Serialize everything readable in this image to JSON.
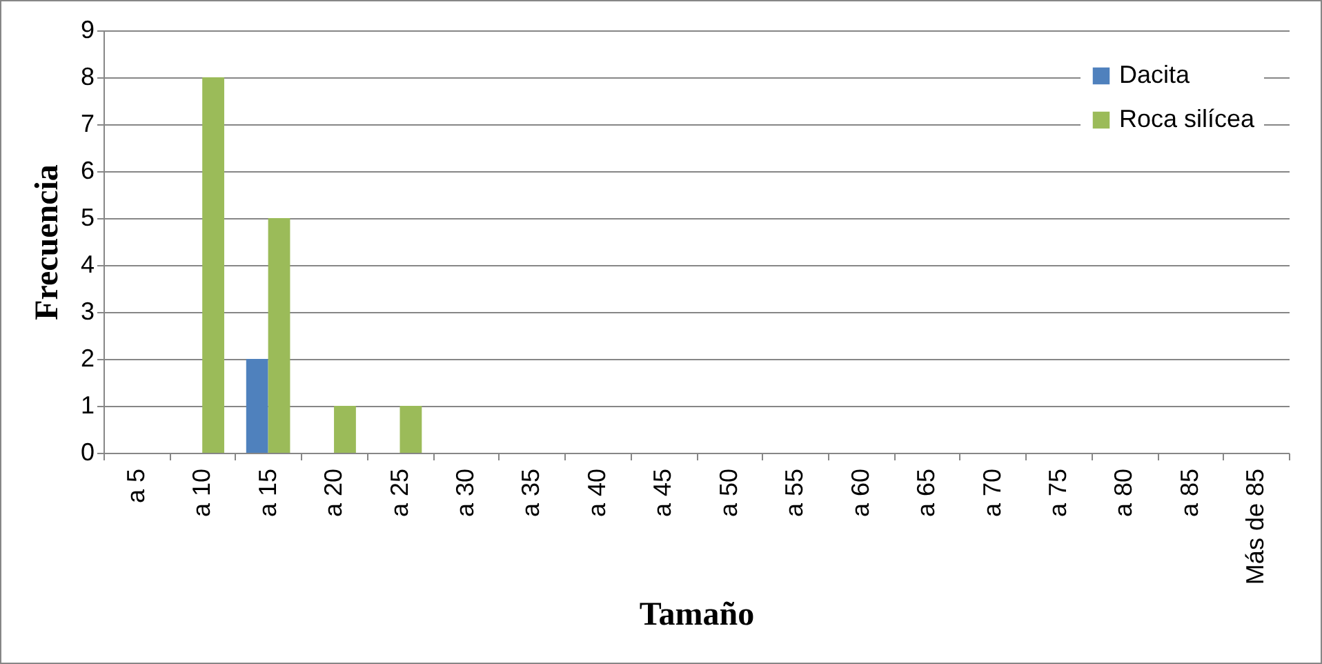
{
  "chart_data": {
    "type": "bar",
    "xlabel": "Tamaño",
    "ylabel": "Frecuencia",
    "categories": [
      "a 5",
      "a 10",
      "a 15",
      "a 20",
      "a 25",
      "a 30",
      "a 35",
      "a 40",
      "a 45",
      "a 50",
      "a 55",
      "a 60",
      "a 65",
      "a 70",
      "a 75",
      "a 80",
      "a 85",
      "Más de 85"
    ],
    "series": [
      {
        "name": "Dacita",
        "color": "#4f81bd",
        "values": [
          0,
          0,
          2,
          0,
          0,
          0,
          0,
          0,
          0,
          0,
          0,
          0,
          0,
          0,
          0,
          0,
          0,
          0
        ]
      },
      {
        "name": "Roca silícea",
        "color": "#9bbb59",
        "values": [
          0,
          8,
          5,
          1,
          1,
          0,
          0,
          0,
          0,
          0,
          0,
          0,
          0,
          0,
          0,
          0,
          0,
          0
        ]
      }
    ],
    "ylim": [
      0,
      9
    ],
    "yticks": [
      0,
      1,
      2,
      3,
      4,
      5,
      6,
      7,
      8,
      9
    ],
    "grid": "y",
    "legend": "top right"
  }
}
